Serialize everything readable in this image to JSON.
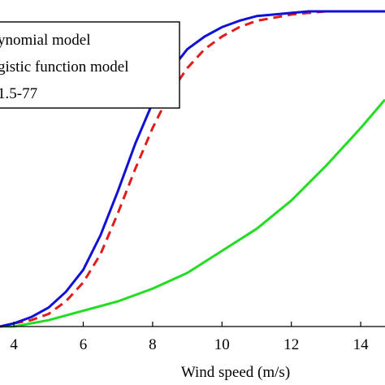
{
  "chart_data": {
    "type": "line",
    "xlabel": "Wind speed (m/s)",
    "ylabel": "",
    "title": "",
    "xlim": [
      3.6,
      14.7
    ],
    "ylim": [
      0,
      1
    ],
    "xticks": [
      4,
      6,
      8,
      10,
      12,
      14
    ],
    "grid": false,
    "legend": {
      "placement": "top-left",
      "entries": [
        "ynomial model",
        "gistic function model",
        "1.5-77"
      ]
    },
    "series": [
      {
        "color": "#1010d8",
        "style": "solid",
        "x": [
          3.6,
          4.0,
          4.5,
          5.0,
          5.5,
          6.0,
          6.5,
          7.0,
          7.5,
          8.0,
          8.5,
          9.0,
          9.5,
          10.0,
          10.5,
          11.0,
          11.5,
          12.0,
          12.5,
          13.0,
          13.5,
          14.0,
          14.7
        ],
        "values": [
          0.0,
          0.01,
          0.03,
          0.06,
          0.11,
          0.18,
          0.29,
          0.43,
          0.58,
          0.71,
          0.81,
          0.88,
          0.92,
          0.95,
          0.97,
          0.985,
          0.99,
          0.995,
          1.0,
          1.0,
          1.0,
          1.0,
          1.0
        ]
      },
      {
        "color": "#e01c1c",
        "style": "dashed",
        "x": [
          3.6,
          4.0,
          4.5,
          5.0,
          5.5,
          6.0,
          6.5,
          7.0,
          7.5,
          8.0,
          8.5,
          9.0,
          9.5,
          10.0,
          10.5,
          11.0,
          11.5,
          12.0,
          12.5,
          13.0,
          13.5,
          14.0,
          14.7
        ],
        "values": [
          0.0,
          0.01,
          0.02,
          0.04,
          0.08,
          0.14,
          0.23,
          0.36,
          0.5,
          0.63,
          0.74,
          0.82,
          0.88,
          0.92,
          0.95,
          0.97,
          0.98,
          0.99,
          0.995,
          1.0,
          1.0,
          1.0,
          1.0
        ]
      },
      {
        "color": "#22dd22",
        "style": "solid",
        "x": [
          3.6,
          4.0,
          5.0,
          6.0,
          7.0,
          8.0,
          9.0,
          10.0,
          11.0,
          12.0,
          13.0,
          14.0,
          14.7
        ],
        "values": [
          0.0,
          0.0,
          0.02,
          0.05,
          0.08,
          0.12,
          0.17,
          0.24,
          0.31,
          0.4,
          0.51,
          0.63,
          0.72
        ]
      }
    ]
  }
}
